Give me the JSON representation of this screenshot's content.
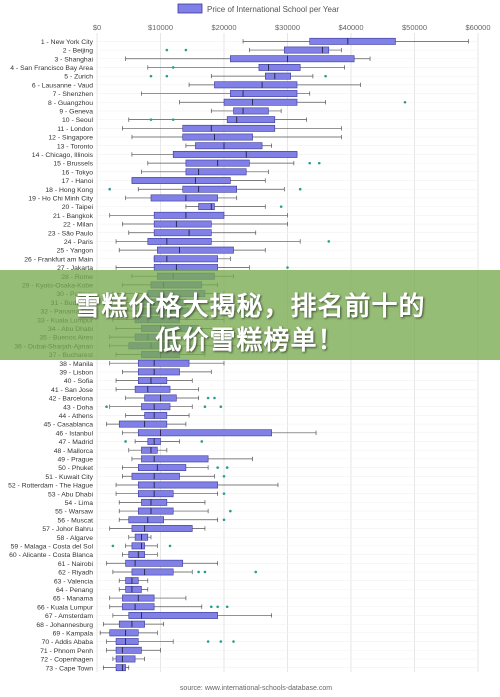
{
  "chart_data": {
    "type": "box",
    "orientation": "horizontal",
    "legend": "Price of International School per Year",
    "source": "source: www.international-schools-database.com",
    "xticks": [
      "$0",
      "$10000",
      "$20000",
      "$30000",
      "$40000",
      "$50000",
      "$60000"
    ],
    "xlim": [
      0,
      60000
    ],
    "colors": {
      "box": "#8080e6",
      "box_border": "#3a3a9a",
      "whisker": "#555555",
      "outlier": "#2a9d8f",
      "grid": "#e6e6e6"
    },
    "categories": [
      {
        "label": "1 - New York City",
        "min": 23000,
        "q1": 33500,
        "median": 39500,
        "q3": 47000,
        "max": 58500,
        "outliers": []
      },
      {
        "label": "2 - Beijing",
        "min": 24000,
        "q1": 29500,
        "median": 35500,
        "q3": 36500,
        "max": 38500,
        "outliers": [
          11000,
          14000
        ]
      },
      {
        "label": "3 - Shanghai",
        "min": 4500,
        "q1": 21000,
        "median": 30000,
        "q3": 40500,
        "max": 43000,
        "outliers": []
      },
      {
        "label": "4 - San Francisco Bay Area",
        "min": 8000,
        "q1": 25500,
        "median": 27000,
        "q3": 32000,
        "max": 39000,
        "outliers": [
          12000
        ]
      },
      {
        "label": "5 - Zurich",
        "min": 18000,
        "q1": 26500,
        "median": 28000,
        "q3": 30500,
        "max": 34000,
        "outliers": [
          8500,
          11000,
          36000
        ]
      },
      {
        "label": "6 - Lausanne - Vaud",
        "min": 14500,
        "q1": 18500,
        "median": 26000,
        "q3": 31500,
        "max": 41500,
        "outliers": []
      },
      {
        "label": "7 - Shenzhen",
        "min": 7000,
        "q1": 21000,
        "median": 23000,
        "q3": 31500,
        "max": 33500,
        "outliers": []
      },
      {
        "label": "8 - Guangzhou",
        "min": 13000,
        "q1": 20000,
        "median": 24500,
        "q3": 31500,
        "max": 36000,
        "outliers": [
          48500
        ]
      },
      {
        "label": "9 - Geneva",
        "min": 18000,
        "q1": 21500,
        "median": 23000,
        "q3": 27000,
        "max": 29000,
        "outliers": []
      },
      {
        "label": "10 - Seoul",
        "min": 5000,
        "q1": 20500,
        "median": 22000,
        "q3": 28000,
        "max": 33000,
        "outliers": [
          8500,
          12000
        ]
      },
      {
        "label": "11 - London",
        "min": 4000,
        "q1": 13500,
        "median": 18000,
        "q3": 28000,
        "max": 38500,
        "outliers": []
      },
      {
        "label": "12 - Singapore",
        "min": 5500,
        "q1": 13500,
        "median": 18500,
        "q3": 24500,
        "max": 38500,
        "outliers": []
      },
      {
        "label": "13 - Toronto",
        "min": 14000,
        "q1": 15500,
        "median": 20000,
        "q3": 26000,
        "max": 27500,
        "outliers": []
      },
      {
        "label": "14 - Chicago, Illinois",
        "min": 5500,
        "q1": 12000,
        "median": 23500,
        "q3": 31500,
        "max": 31500,
        "outliers": []
      },
      {
        "label": "15 - Brussels",
        "min": 8000,
        "q1": 14000,
        "median": 19000,
        "q3": 24000,
        "max": 31000,
        "outliers": [
          33500,
          35000
        ]
      },
      {
        "label": "16 - Tokyo",
        "min": 7000,
        "q1": 14000,
        "median": 16000,
        "q3": 23500,
        "max": 27000,
        "outliers": []
      },
      {
        "label": "17 - Hanoi",
        "min": 5500,
        "q1": 5500,
        "median": 15500,
        "q3": 21000,
        "max": 26500,
        "outliers": []
      },
      {
        "label": "18 - Hong Kong",
        "min": 6500,
        "q1": 13500,
        "median": 16000,
        "q3": 22000,
        "max": 29500,
        "outliers": [
          2000,
          32000
        ]
      },
      {
        "label": "19 - Ho Chi Minh City",
        "min": 4500,
        "q1": 8500,
        "median": 14000,
        "q3": 19000,
        "max": 22000,
        "outliers": []
      },
      {
        "label": "20 - Taipei",
        "min": 14000,
        "q1": 16000,
        "median": 18000,
        "q3": 18500,
        "max": 26500,
        "outliers": [
          29000
        ]
      },
      {
        "label": "21 - Bangkok",
        "min": 2000,
        "q1": 9000,
        "median": 14000,
        "q3": 20000,
        "max": 30000,
        "outliers": []
      },
      {
        "label": "22 - Milan",
        "min": 4000,
        "q1": 9000,
        "median": 12500,
        "q3": 18000,
        "max": 30000,
        "outliers": []
      },
      {
        "label": "23 - São Paulo",
        "min": 5000,
        "q1": 9000,
        "median": 14500,
        "q3": 18000,
        "max": 25000,
        "outliers": []
      },
      {
        "label": "24 - Paris",
        "min": 3000,
        "q1": 8000,
        "median": 11000,
        "q3": 18000,
        "max": 32000,
        "outliers": [
          36500
        ]
      },
      {
        "label": "25 - Yangon",
        "min": 3500,
        "q1": 9500,
        "median": 13000,
        "q3": 21500,
        "max": 26500,
        "outliers": []
      },
      {
        "label": "26 - Frankfurt am Main",
        "min": 9000,
        "q1": 9000,
        "median": 11000,
        "q3": 19000,
        "max": 21000,
        "outliers": []
      },
      {
        "label": "27 - Jakarta",
        "min": 3000,
        "q1": 9000,
        "median": 12500,
        "q3": 19000,
        "max": 24000,
        "outliers": [
          30000
        ]
      },
      {
        "label": "28 - Rome",
        "min": 5500,
        "q1": 9500,
        "median": 12000,
        "q3": 18500,
        "max": 21500,
        "outliers": []
      },
      {
        "label": "29 - Kyoto-Osaka-Kobe",
        "min": 4000,
        "q1": 8500,
        "median": 10500,
        "q3": 16500,
        "max": 19000,
        "outliers": []
      },
      {
        "label": "30 - Pattaya",
        "min": 2500,
        "q1": 8000,
        "median": 10500,
        "q3": 17000,
        "max": 20000,
        "outliers": []
      },
      {
        "label": "31 - Budapest",
        "min": 2500,
        "q1": 7000,
        "median": 10000,
        "q3": 14000,
        "max": 20000,
        "outliers": [
          4000
        ]
      },
      {
        "label": "32 - Panama City",
        "min": 3000,
        "q1": 6500,
        "median": 9500,
        "q3": 14500,
        "max": 22000,
        "outliers": []
      },
      {
        "label": "33 - Kuala Lumpur",
        "min": 2500,
        "q1": 6000,
        "median": 8000,
        "q3": 13000,
        "max": 20000,
        "outliers": []
      },
      {
        "label": "34 - Abu Dhabi",
        "min": 3000,
        "q1": 7000,
        "median": 10000,
        "q3": 16000,
        "max": 21000,
        "outliers": []
      },
      {
        "label": "35 - Buenos Aires",
        "min": 2000,
        "q1": 6000,
        "median": 8000,
        "q3": 12000,
        "max": 20000,
        "outliers": []
      },
      {
        "label": "36 - Dubai-Sharjah-Ajman",
        "min": 2000,
        "q1": 5000,
        "median": 8500,
        "q3": 13000,
        "max": 23000,
        "outliers": []
      },
      {
        "label": "37 - Bucharest",
        "min": 3000,
        "q1": 7000,
        "median": 10000,
        "q3": 13000,
        "max": 17000,
        "outliers": []
      },
      {
        "label": "38 - Manila",
        "min": 2000,
        "q1": 6500,
        "median": 9000,
        "q3": 14500,
        "max": 20000,
        "outliers": []
      },
      {
        "label": "39 - Lisbon",
        "min": 4000,
        "q1": 6500,
        "median": 9000,
        "q3": 13000,
        "max": 18000,
        "outliers": []
      },
      {
        "label": "40 - Sofia",
        "min": 3000,
        "q1": 6500,
        "median": 8500,
        "q3": 11000,
        "max": 15000,
        "outliers": []
      },
      {
        "label": "41 - San Jose",
        "min": 3000,
        "q1": 6000,
        "median": 8000,
        "q3": 11500,
        "max": 16000,
        "outliers": []
      },
      {
        "label": "42 - Barcelona",
        "min": 4500,
        "q1": 7500,
        "median": 10000,
        "q3": 12500,
        "max": 16000,
        "outliers": [
          17500,
          18500
        ]
      },
      {
        "label": "43 - Doha",
        "min": 2000,
        "q1": 7000,
        "median": 9000,
        "q3": 11500,
        "max": 15000,
        "outliers": [
          1500,
          17000,
          19500
        ]
      },
      {
        "label": "44 - Athens",
        "min": 4500,
        "q1": 7500,
        "median": 9000,
        "q3": 11000,
        "max": 14500,
        "outliers": []
      },
      {
        "label": "45 - Casablanca",
        "min": 1500,
        "q1": 3500,
        "median": 7500,
        "q3": 11000,
        "max": 14000,
        "outliers": []
      },
      {
        "label": "46 - Istanbul",
        "min": 4000,
        "q1": 6500,
        "median": 10000,
        "q3": 27500,
        "max": 34500,
        "outliers": []
      },
      {
        "label": "47 - Madrid",
        "min": 6000,
        "q1": 8000,
        "median": 9000,
        "q3": 10000,
        "max": 13000,
        "outliers": [
          4500,
          16500
        ]
      },
      {
        "label": "48 - Mallorca",
        "min": 5000,
        "q1": 7000,
        "median": 8500,
        "q3": 9500,
        "max": 11000,
        "outliers": []
      },
      {
        "label": "49 - Prague",
        "min": 5500,
        "q1": 7000,
        "median": 9000,
        "q3": 17500,
        "max": 24500,
        "outliers": []
      },
      {
        "label": "50 - Phuket",
        "min": 4000,
        "q1": 6500,
        "median": 9500,
        "q3": 14000,
        "max": 17500,
        "outliers": [
          19000,
          20500
        ]
      },
      {
        "label": "51 - Kuwait City",
        "min": 4000,
        "q1": 5500,
        "median": 9000,
        "q3": 13000,
        "max": 18500,
        "outliers": [
          20000
        ]
      },
      {
        "label": "52 - Rotterdam - The Hague",
        "min": 3000,
        "q1": 6500,
        "median": 9000,
        "q3": 19000,
        "max": 28500,
        "outliers": []
      },
      {
        "label": "53 - Abu Dhabi",
        "min": 3000,
        "q1": 6500,
        "median": 9000,
        "q3": 12000,
        "max": 19000,
        "outliers": [
          20000
        ]
      },
      {
        "label": "54 - Lima",
        "min": 3500,
        "q1": 7000,
        "median": 8500,
        "q3": 11000,
        "max": 17000,
        "outliers": []
      },
      {
        "label": "55 - Warsaw",
        "min": 3500,
        "q1": 6500,
        "median": 8500,
        "q3": 12000,
        "max": 17500,
        "outliers": [
          21000
        ]
      },
      {
        "label": "56 - Muscat",
        "min": 3500,
        "q1": 5000,
        "median": 8000,
        "q3": 10500,
        "max": 19000,
        "outliers": [
          20000
        ]
      },
      {
        "label": "57 - Johor Bahru",
        "min": 2000,
        "q1": 5500,
        "median": 7500,
        "q3": 15000,
        "max": 17000,
        "outliers": []
      },
      {
        "label": "58 - Algarve",
        "min": 5000,
        "q1": 6000,
        "median": 7000,
        "q3": 8000,
        "max": 8500,
        "outliers": []
      },
      {
        "label": "59 - Malaga - Costa del Sol",
        "min": 4500,
        "q1": 5500,
        "median": 7000,
        "q3": 7500,
        "max": 9500,
        "outliers": [
          2500,
          11500
        ]
      },
      {
        "label": "60 - Alicante - Costa Blanca",
        "min": 4000,
        "q1": 5000,
        "median": 6500,
        "q3": 7500,
        "max": 9500,
        "outliers": []
      },
      {
        "label": "61 - Nairobi",
        "min": 1500,
        "q1": 4500,
        "median": 6000,
        "q3": 13500,
        "max": 19000,
        "outliers": []
      },
      {
        "label": "62 - Riyadh",
        "min": 2500,
        "q1": 5500,
        "median": 7500,
        "q3": 12000,
        "max": 15000,
        "outliers": [
          16000,
          17000,
          25000
        ]
      },
      {
        "label": "63 - Valencia",
        "min": 3500,
        "q1": 4500,
        "median": 5500,
        "q3": 6500,
        "max": 8000,
        "outliers": []
      },
      {
        "label": "64 - Penang",
        "min": 3500,
        "q1": 4500,
        "median": 5500,
        "q3": 7000,
        "max": 8000,
        "outliers": []
      },
      {
        "label": "65 - Manama",
        "min": 2000,
        "q1": 4000,
        "median": 6500,
        "q3": 9000,
        "max": 14000,
        "outliers": []
      },
      {
        "label": "66 - Kuala Lumpur",
        "min": 2000,
        "q1": 4000,
        "median": 6000,
        "q3": 9000,
        "max": 16500,
        "outliers": [
          18000,
          19000,
          20500
        ]
      },
      {
        "label": "67 - Amsterdam",
        "min": 2500,
        "q1": 5000,
        "median": 7000,
        "q3": 19000,
        "max": 27500,
        "outliers": []
      },
      {
        "label": "68 - Johannesburg",
        "min": 1000,
        "q1": 3500,
        "median": 5500,
        "q3": 7500,
        "max": 10500,
        "outliers": []
      },
      {
        "label": "69 - Kampala",
        "min": 500,
        "q1": 2000,
        "median": 4500,
        "q3": 6500,
        "max": 9500,
        "outliers": []
      },
      {
        "label": "70 - Addis Ababa",
        "min": 1500,
        "q1": 3000,
        "median": 4500,
        "q3": 6500,
        "max": 12000,
        "outliers": [
          17500,
          19500,
          21500
        ]
      },
      {
        "label": "71 - Phnom Penh",
        "min": 1500,
        "q1": 3000,
        "median": 4000,
        "q3": 7000,
        "max": 10000,
        "outliers": []
      },
      {
        "label": "72 - Copenhagen",
        "min": 2500,
        "q1": 3000,
        "median": 4000,
        "q3": 6000,
        "max": 7500,
        "outliers": []
      },
      {
        "label": "73 - Cape Town",
        "min": 1000,
        "q1": 3000,
        "median": 4000,
        "q3": 4500,
        "max": 5000,
        "outliers": []
      }
    ]
  },
  "banner": {
    "line1": "雪糕价格大揭秘，排名前十的",
    "line2": "低价雪糕榜单！",
    "color": "#78aa50"
  }
}
